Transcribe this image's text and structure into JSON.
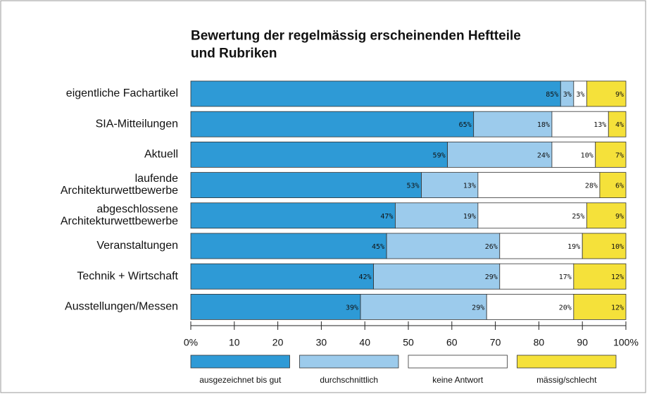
{
  "chart_data": {
    "type": "stacked-bar-horizontal",
    "title": "Bewertung der regelmässig erscheinenden Heftteile und Rubriken",
    "categories": [
      "eigentliche Fachartikel",
      "SIA-Mitteilungen",
      "Aktuell",
      "laufende Architekturwettbewerbe",
      "abgeschlossene Architekturwettbewerbe",
      "Veranstaltungen",
      "Technik + Wirtschaft",
      "Ausstellungen/Messen"
    ],
    "series": [
      {
        "name": "ausgezeichnet bis gut",
        "color": "#2e9ad6",
        "values": [
          85,
          65,
          59,
          53,
          47,
          45,
          42,
          39
        ],
        "value_labels": [
          "85%",
          "65%",
          "59%",
          "53%",
          "47%",
          "45%",
          "42%",
          "39%"
        ]
      },
      {
        "name": "durchschnittlich",
        "color": "#9ccbec",
        "values": [
          3,
          18,
          24,
          13,
          19,
          26,
          29,
          29
        ],
        "value_labels": [
          "3%",
          "18%",
          "24%",
          "13%",
          "19%",
          "26%",
          "29%",
          "29%"
        ]
      },
      {
        "name": "keine Antwort",
        "color": "#ffffff",
        "values": [
          3,
          13,
          10,
          28,
          25,
          19,
          17,
          20
        ],
        "value_labels": [
          "3%",
          "13%",
          "10%",
          "28%",
          "25%",
          "19%",
          "17%",
          "20%"
        ]
      },
      {
        "name": "mässig/schlecht",
        "color": "#f5e13a",
        "values": [
          9,
          4,
          7,
          6,
          9,
          10,
          12,
          12
        ],
        "value_labels": [
          "9%",
          "4%",
          "7%",
          "6%",
          "9%",
          "10%",
          "12%",
          "12%"
        ]
      }
    ],
    "xlim": [
      0,
      100
    ],
    "xticks": [
      {
        "value": 0,
        "label": "0%"
      },
      10,
      20,
      30,
      40,
      50,
      60,
      70,
      80,
      90,
      {
        "value": 100,
        "label": "100%"
      }
    ]
  }
}
